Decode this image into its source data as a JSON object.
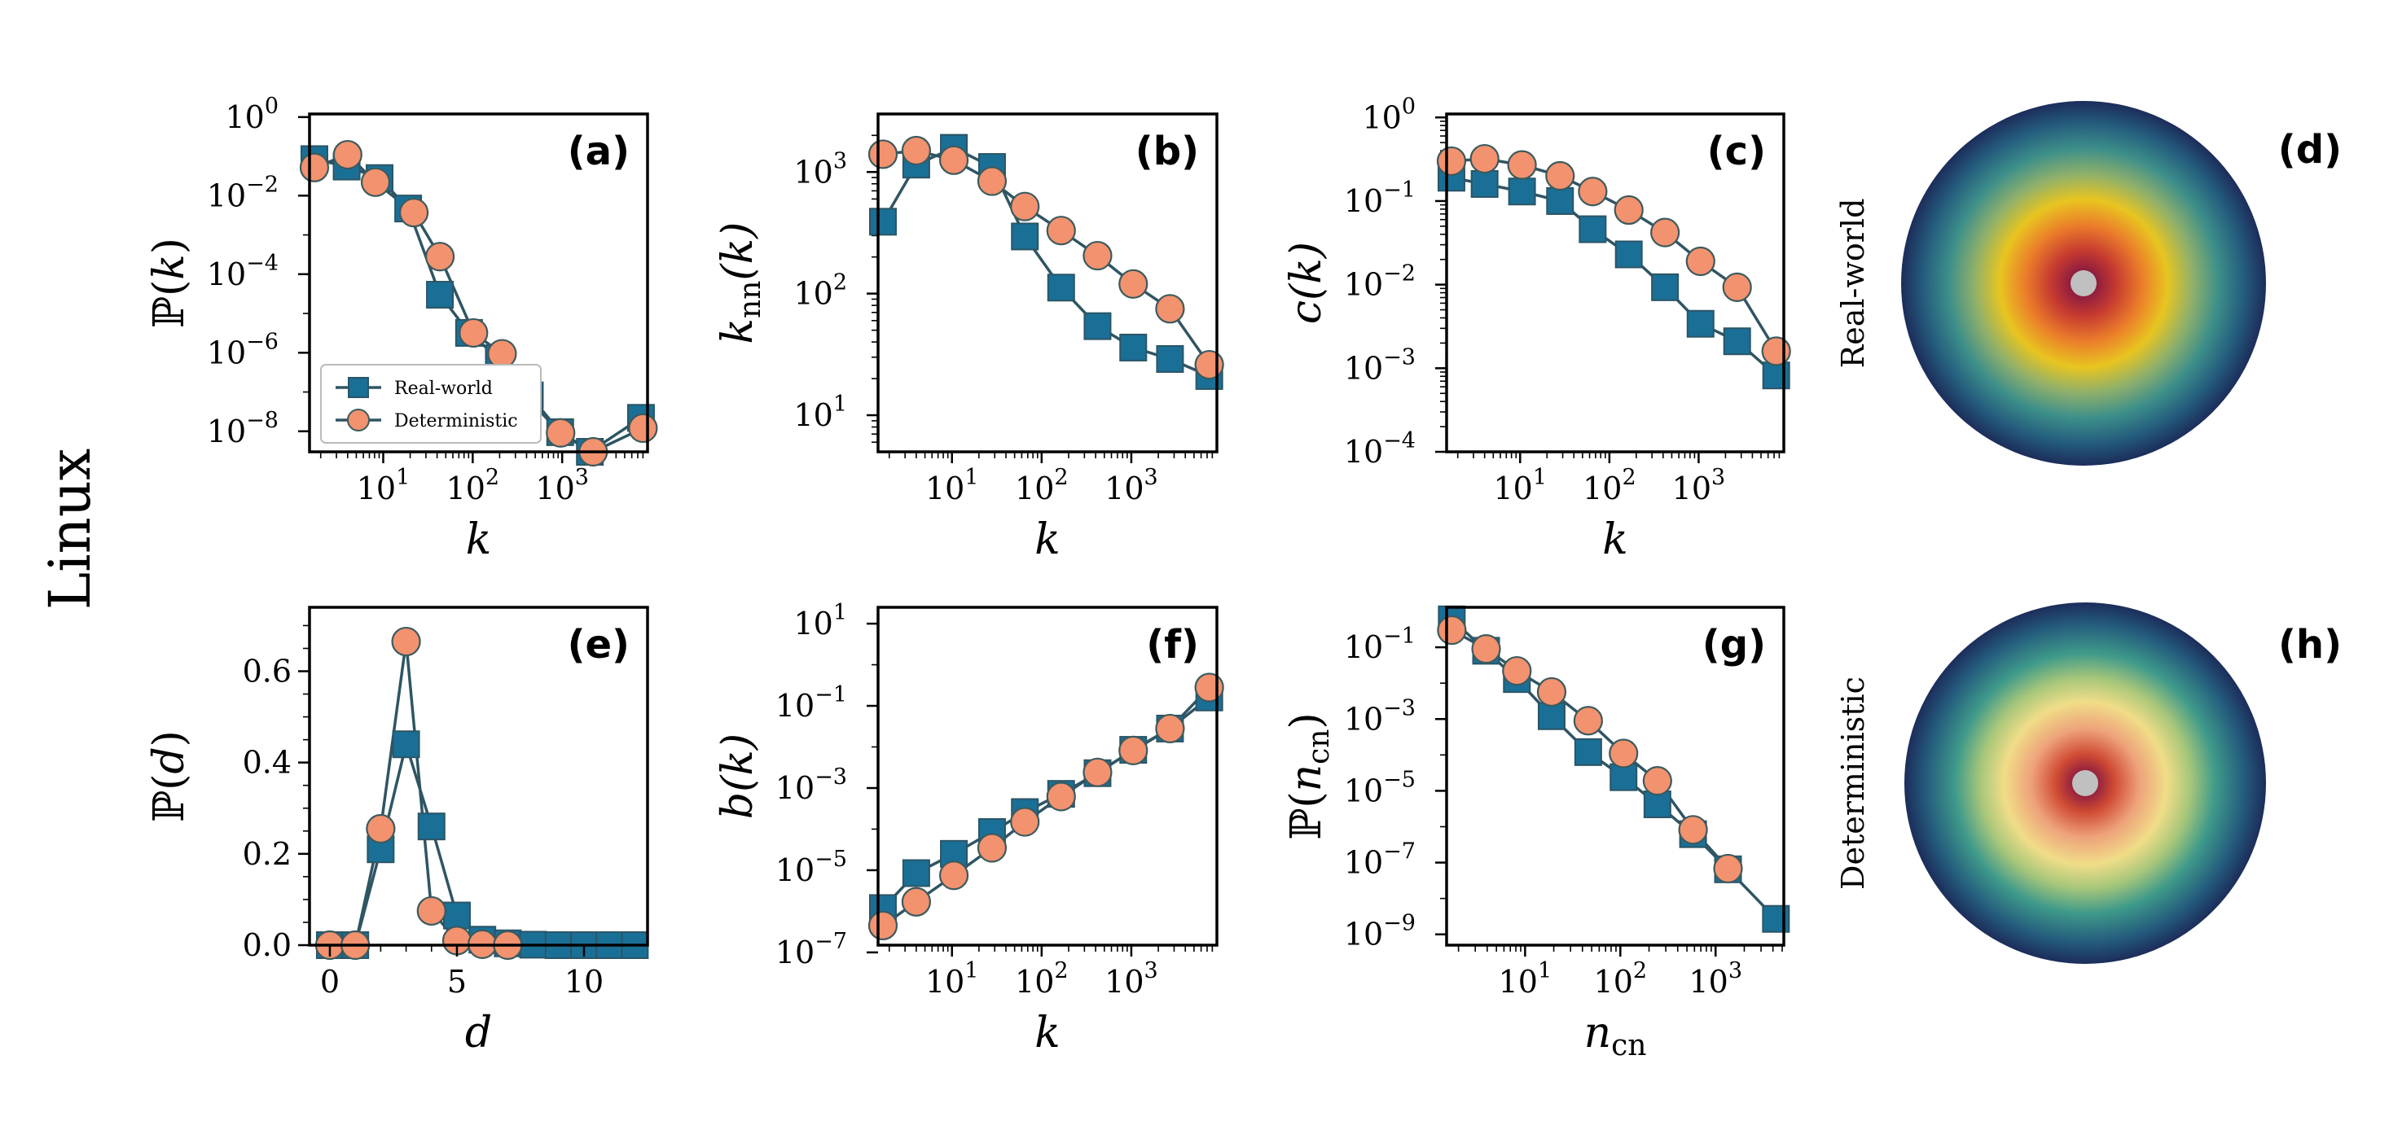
{
  "row_label": "Linux",
  "colors": {
    "square": "#1a6f96",
    "square_edge": "#2b5566",
    "circle": "#f2926e",
    "circle_edge": "#3c5a5e",
    "line": "#2f5563"
  },
  "legend": {
    "series": [
      "Real-world",
      "Deterministic"
    ]
  },
  "chart_data": [
    {
      "id": "a",
      "tag": "(a)",
      "type": "line",
      "xscale": "log",
      "yscale": "log",
      "xlabel": "k",
      "ylabel": "P(k)",
      "xlim": [
        1.5,
        9000
      ],
      "ylim": [
        3e-09,
        1.2
      ],
      "xticks": [
        {
          "v": 10,
          "b": "10",
          "e": "1"
        },
        {
          "v": 100,
          "b": "10",
          "e": "2"
        },
        {
          "v": 1000,
          "b": "10",
          "e": "3"
        }
      ],
      "yticks": [
        {
          "v": 1,
          "b": "10",
          "e": "0"
        },
        {
          "v": 0.01,
          "b": "10",
          "e": "−2"
        },
        {
          "v": 0.0001,
          "b": "10",
          "e": "−4"
        },
        {
          "v": 1e-06,
          "b": "10",
          "e": "−6"
        },
        {
          "v": 1e-08,
          "b": "10",
          "e": "−8"
        }
      ],
      "series": [
        {
          "name": "Real-world",
          "marker": "square",
          "x": [
            1.7,
            3.9,
            9.1,
            19,
            43,
            91,
            196,
            435,
            950,
            2040,
            7600
          ],
          "y": [
            0.085,
            0.055,
            0.028,
            0.0047,
            3e-05,
            3.2e-06,
            7.2e-07,
            8.2e-08,
            9.5e-09,
            1.1e-09,
            2.2e-08
          ]
        },
        {
          "name": "Deterministic",
          "marker": "circle",
          "x": [
            1.7,
            4.0,
            8.2,
            22,
            43,
            102,
            213,
            415,
            960,
            2220,
            8000
          ],
          "y": [
            0.052,
            0.11,
            0.022,
            0.0037,
            0.00028,
            3.2e-06,
            9.4e-07,
            6.7e-08,
            9.1e-09,
            1.2e-09,
            1.2e-08
          ]
        }
      ]
    },
    {
      "id": "b",
      "tag": "(b)",
      "type": "line",
      "xscale": "log",
      "yscale": "log",
      "xlabel": "k",
      "ylabel": "knn(k)",
      "xlim": [
        1.5,
        9000
      ],
      "ylim": [
        5,
        3000
      ],
      "xticks": [
        {
          "v": 10,
          "b": "10",
          "e": "1"
        },
        {
          "v": 100,
          "b": "10",
          "e": "2"
        },
        {
          "v": 1000,
          "b": "10",
          "e": "3"
        }
      ],
      "yticks": [
        {
          "v": 1000,
          "b": "10",
          "e": "3"
        },
        {
          "v": 100,
          "b": "10",
          "e": "2"
        },
        {
          "v": 10,
          "b": "10",
          "e": "1"
        }
      ],
      "series": [
        {
          "name": "Real-world",
          "marker": "square",
          "x": [
            1.7,
            4.0,
            10.5,
            28,
            65,
            165,
            420,
            1050,
            2700,
            7400
          ],
          "y": [
            390,
            1150,
            1580,
            1100,
            295,
            112,
            54,
            36,
            29,
            21
          ]
        },
        {
          "name": "Deterministic",
          "marker": "circle",
          "x": [
            1.7,
            4.0,
            10.5,
            28,
            65,
            165,
            420,
            1050,
            2700,
            7400
          ],
          "y": [
            1400,
            1500,
            1250,
            840,
            520,
            330,
            205,
            120,
            75,
            26
          ]
        }
      ]
    },
    {
      "id": "c",
      "tag": "(c)",
      "type": "line",
      "xscale": "log",
      "yscale": "log",
      "xlabel": "k",
      "ylabel": "c(k)",
      "xlim": [
        1.5,
        9000
      ],
      "ylim": [
        0.0001,
        1.1
      ],
      "xticks": [
        {
          "v": 10,
          "b": "10",
          "e": "1"
        },
        {
          "v": 100,
          "b": "10",
          "e": "2"
        },
        {
          "v": 1000,
          "b": "10",
          "e": "3"
        }
      ],
      "yticks": [
        {
          "v": 1,
          "b": "10",
          "e": "0"
        },
        {
          "v": 0.1,
          "b": "10",
          "e": "−1"
        },
        {
          "v": 0.01,
          "b": "10",
          "e": "−2"
        },
        {
          "v": 0.001,
          "b": "10",
          "e": "−3"
        },
        {
          "v": 0.0001,
          "b": "10",
          "e": "−4"
        }
      ],
      "series": [
        {
          "name": "Real-world",
          "marker": "square",
          "x": [
            1.7,
            4.0,
            10.5,
            28,
            65,
            165,
            420,
            1050,
            2700,
            7400
          ],
          "y": [
            0.19,
            0.16,
            0.13,
            0.1,
            0.046,
            0.023,
            0.0093,
            0.0034,
            0.0021,
            0.00082
          ]
        },
        {
          "name": "Deterministic",
          "marker": "circle",
          "x": [
            1.7,
            4.0,
            10.5,
            28,
            65,
            165,
            420,
            1050,
            2700,
            7400
          ],
          "y": [
            0.3,
            0.32,
            0.27,
            0.2,
            0.13,
            0.078,
            0.042,
            0.019,
            0.0093,
            0.0016
          ]
        }
      ]
    },
    {
      "id": "e",
      "tag": "(e)",
      "type": "line",
      "xscale": "linear",
      "yscale": "linear",
      "xlabel": "d",
      "ylabel": "P(d)",
      "xlim": [
        -0.8,
        12.5
      ],
      "ylim": [
        0,
        0.74
      ],
      "xticks": [
        {
          "v": 0,
          "b": "0"
        },
        {
          "v": 5,
          "b": "5"
        },
        {
          "v": 10,
          "b": "10"
        }
      ],
      "yticks": [
        {
          "v": 0,
          "b": "0.0"
        },
        {
          "v": 0.2,
          "b": "0.2"
        },
        {
          "v": 0.4,
          "b": "0.4"
        },
        {
          "v": 0.6,
          "b": "0.6"
        }
      ],
      "series": [
        {
          "name": "Real-world",
          "marker": "square",
          "x": [
            0,
            1,
            2,
            3,
            4,
            5,
            6,
            7,
            8,
            9,
            10,
            11,
            12
          ],
          "y": [
            0.0,
            0.0,
            0.21,
            0.44,
            0.26,
            0.065,
            0.012,
            0.004,
            0.001,
            0.0,
            0.0,
            0.0,
            0.0
          ]
        },
        {
          "name": "Deterministic",
          "marker": "circle",
          "x": [
            0,
            1,
            2,
            3,
            4,
            5,
            6,
            7
          ],
          "y": [
            0.0,
            0.0,
            0.255,
            0.665,
            0.075,
            0.01,
            0.002,
            0.0
          ]
        }
      ]
    },
    {
      "id": "f",
      "tag": "(f)",
      "type": "line",
      "xscale": "log",
      "yscale": "log",
      "xlabel": "k",
      "ylabel": "b(k)",
      "xlim": [
        1.5,
        9000
      ],
      "ylim": [
        1.5e-07,
        25
      ],
      "xticks": [
        {
          "v": 10,
          "b": "10",
          "e": "1"
        },
        {
          "v": 100,
          "b": "10",
          "e": "2"
        },
        {
          "v": 1000,
          "b": "10",
          "e": "3"
        }
      ],
      "yticks": [
        {
          "v": 10,
          "b": "10",
          "e": "1"
        },
        {
          "v": 0.1,
          "b": "10",
          "e": "−1"
        },
        {
          "v": 0.001,
          "b": "10",
          "e": "−3"
        },
        {
          "v": 1e-05,
          "b": "10",
          "e": "−5"
        },
        {
          "v": 1e-07,
          "b": "10",
          "e": "−7"
        }
      ],
      "series": [
        {
          "name": "Real-world",
          "marker": "square",
          "x": [
            1.7,
            4.0,
            10.5,
            28,
            65,
            165,
            420,
            1050,
            2700,
            7400
          ],
          "y": [
            1.2e-06,
            8.5e-06,
            2.5e-05,
            8.5e-05,
            0.00026,
            0.00072,
            0.0023,
            0.0085,
            0.028,
            0.16
          ]
        },
        {
          "name": "Deterministic",
          "marker": "circle",
          "x": [
            1.7,
            4.0,
            10.5,
            28,
            65,
            165,
            420,
            1050,
            2700,
            7400
          ],
          "y": [
            4.5e-07,
            1.7e-06,
            7.5e-06,
            3.5e-05,
            0.00015,
            0.00062,
            0.0024,
            0.0082,
            0.028,
            0.28
          ]
        }
      ]
    },
    {
      "id": "g",
      "tag": "(g)",
      "type": "line",
      "xscale": "log",
      "yscale": "log",
      "xlabel": "ncn",
      "ylabel": "P(ncn)",
      "xlim": [
        1.5,
        5200
      ],
      "ylim": [
        5e-10,
        1.3
      ],
      "xticks": [
        {
          "v": 10,
          "b": "10",
          "e": "1"
        },
        {
          "v": 100,
          "b": "10",
          "e": "2"
        },
        {
          "v": 1000,
          "b": "10",
          "e": "3"
        }
      ],
      "yticks": [
        {
          "v": 0.1,
          "b": "10",
          "e": "−1"
        },
        {
          "v": 0.001,
          "b": "10",
          "e": "−3"
        },
        {
          "v": 1e-05,
          "b": "10",
          "e": "−5"
        },
        {
          "v": 1e-07,
          "b": "10",
          "e": "−7"
        },
        {
          "v": 1e-09,
          "b": "10",
          "e": "−9"
        }
      ],
      "series": [
        {
          "name": "Real-world",
          "marker": "square",
          "x": [
            1.7,
            3.9,
            8.2,
            19,
            46,
            108,
            245,
            580,
            1350,
            4300
          ],
          "y": [
            0.6,
            0.08,
            0.013,
            0.0012,
            0.00012,
            2.4e-05,
            4.2e-06,
            6.2e-07,
            6.5e-08,
            2.7e-09
          ]
        },
        {
          "name": "Deterministic",
          "marker": "circle",
          "x": [
            1.7,
            3.9,
            8.2,
            19,
            46,
            108,
            245,
            580,
            1350
          ],
          "y": [
            0.3,
            0.09,
            0.022,
            0.0057,
            0.0009,
            0.00011,
            1.9e-05,
            8.2e-07,
            6.8e-08
          ]
        }
      ]
    }
  ],
  "embeddings": [
    {
      "id": "d",
      "tag": "(d)",
      "label": "Real-world"
    },
    {
      "id": "h",
      "tag": "(h)",
      "label": "Deterministic"
    }
  ]
}
